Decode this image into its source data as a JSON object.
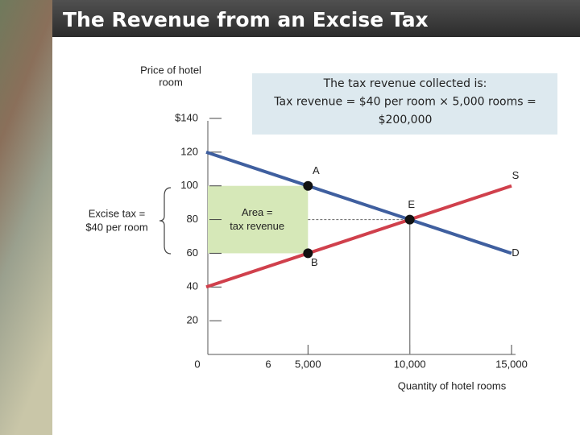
{
  "chart_data": {
    "type": "line",
    "title": "The Revenue from an Excise Tax",
    "y_label": [
      "Price of hotel",
      "room"
    ],
    "x_label": "Quantity of hotel rooms",
    "xlim": [
      0,
      15000
    ],
    "ylim": [
      0,
      140
    ],
    "xticks": [
      0,
      {
        "value": 5000,
        "label": "5,000"
      },
      {
        "value": 10000,
        "label": "10,000"
      },
      {
        "value": 15000,
        "label": "15,000"
      }
    ],
    "yticks": [
      20,
      40,
      60,
      80,
      100,
      120,
      {
        "value": 140,
        "label": "$140"
      }
    ],
    "series": [
      {
        "name": "D",
        "color": "#3f5f9f",
        "x": [
          0,
          15000
        ],
        "values": [
          120,
          60
        ]
      },
      {
        "name": "S",
        "color": "#d0404c",
        "x": [
          0,
          15000
        ],
        "values": [
          40,
          100
        ]
      }
    ],
    "points": [
      {
        "label": "A",
        "x": 5000,
        "y": 100
      },
      {
        "label": "B",
        "x": 5000,
        "y": 60
      },
      {
        "label": "E",
        "x": 10000,
        "y": 80
      }
    ],
    "tax_area": {
      "label": [
        "Area =",
        "tax revenue"
      ],
      "x": [
        0,
        5000
      ],
      "y": [
        60,
        100
      ],
      "color": "#d6e8b8"
    },
    "tax_label": [
      "Excise tax =",
      "$40 per room"
    ],
    "revenue_box": [
      "The tax revenue collected is:",
      "Tax revenue = $40 per room × 5,000 rooms =",
      "$200,000"
    ],
    "stray_label": "6"
  }
}
